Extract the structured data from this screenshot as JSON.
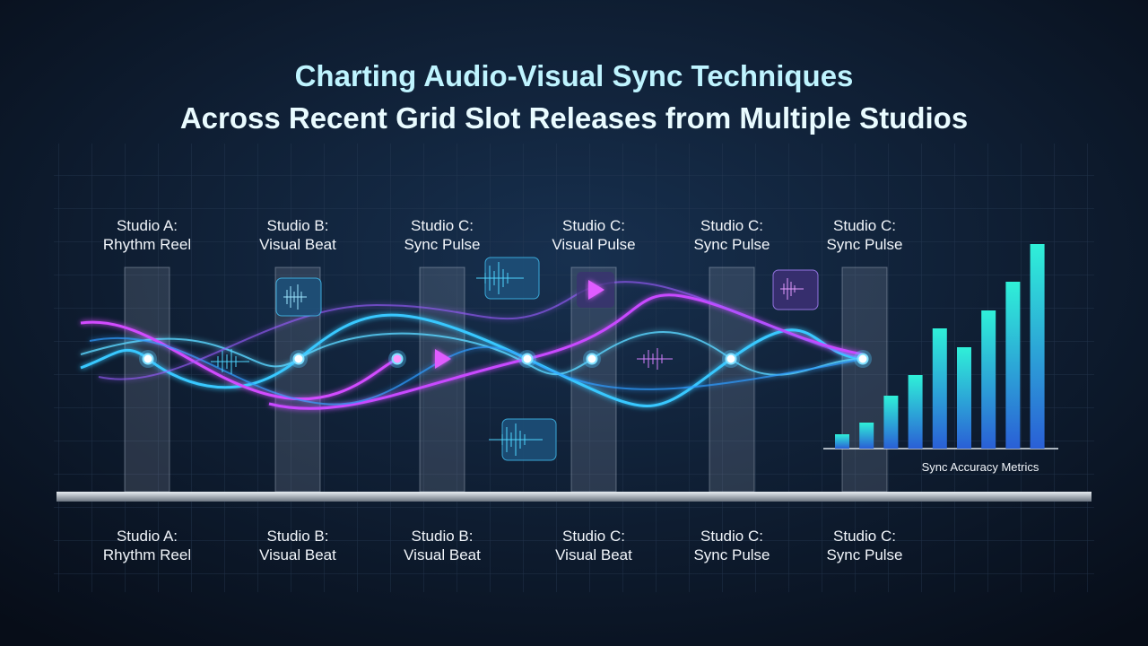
{
  "header": {
    "title_lines": [
      "Charting Audio-Visual Sync Techniques",
      "Across Recent Grid Slot Releases from Multiple Studios"
    ]
  },
  "top_labels": [
    [
      "Studio A:",
      "Rhythm Reel"
    ],
    [
      "Studio B:",
      "Visual Beat"
    ],
    [
      "Studio C:",
      "Sync Pulse"
    ],
    [
      "Studio C:",
      "Visual Pulse"
    ],
    [
      "Studio C:",
      "Sync Pulse"
    ],
    [
      "Studio C:",
      "Sync Pulse"
    ]
  ],
  "bottom_labels": [
    [
      "Studio A:",
      "Rhythm Reel"
    ],
    [
      "Studio B:",
      "Visual Beat"
    ],
    [
      "Studio B:",
      "Visual Beat"
    ],
    [
      "Studio C:",
      "Visual Beat"
    ],
    [
      "Studio C:",
      "Sync Pulse"
    ],
    [
      "Studio C:",
      "Sync Pulse"
    ]
  ],
  "metrics_chart": {
    "type": "bar",
    "label": "Sync Accuracy Metrics",
    "values": [
      16,
      29,
      59,
      82,
      134,
      113,
      154,
      186,
      228
    ]
  }
}
